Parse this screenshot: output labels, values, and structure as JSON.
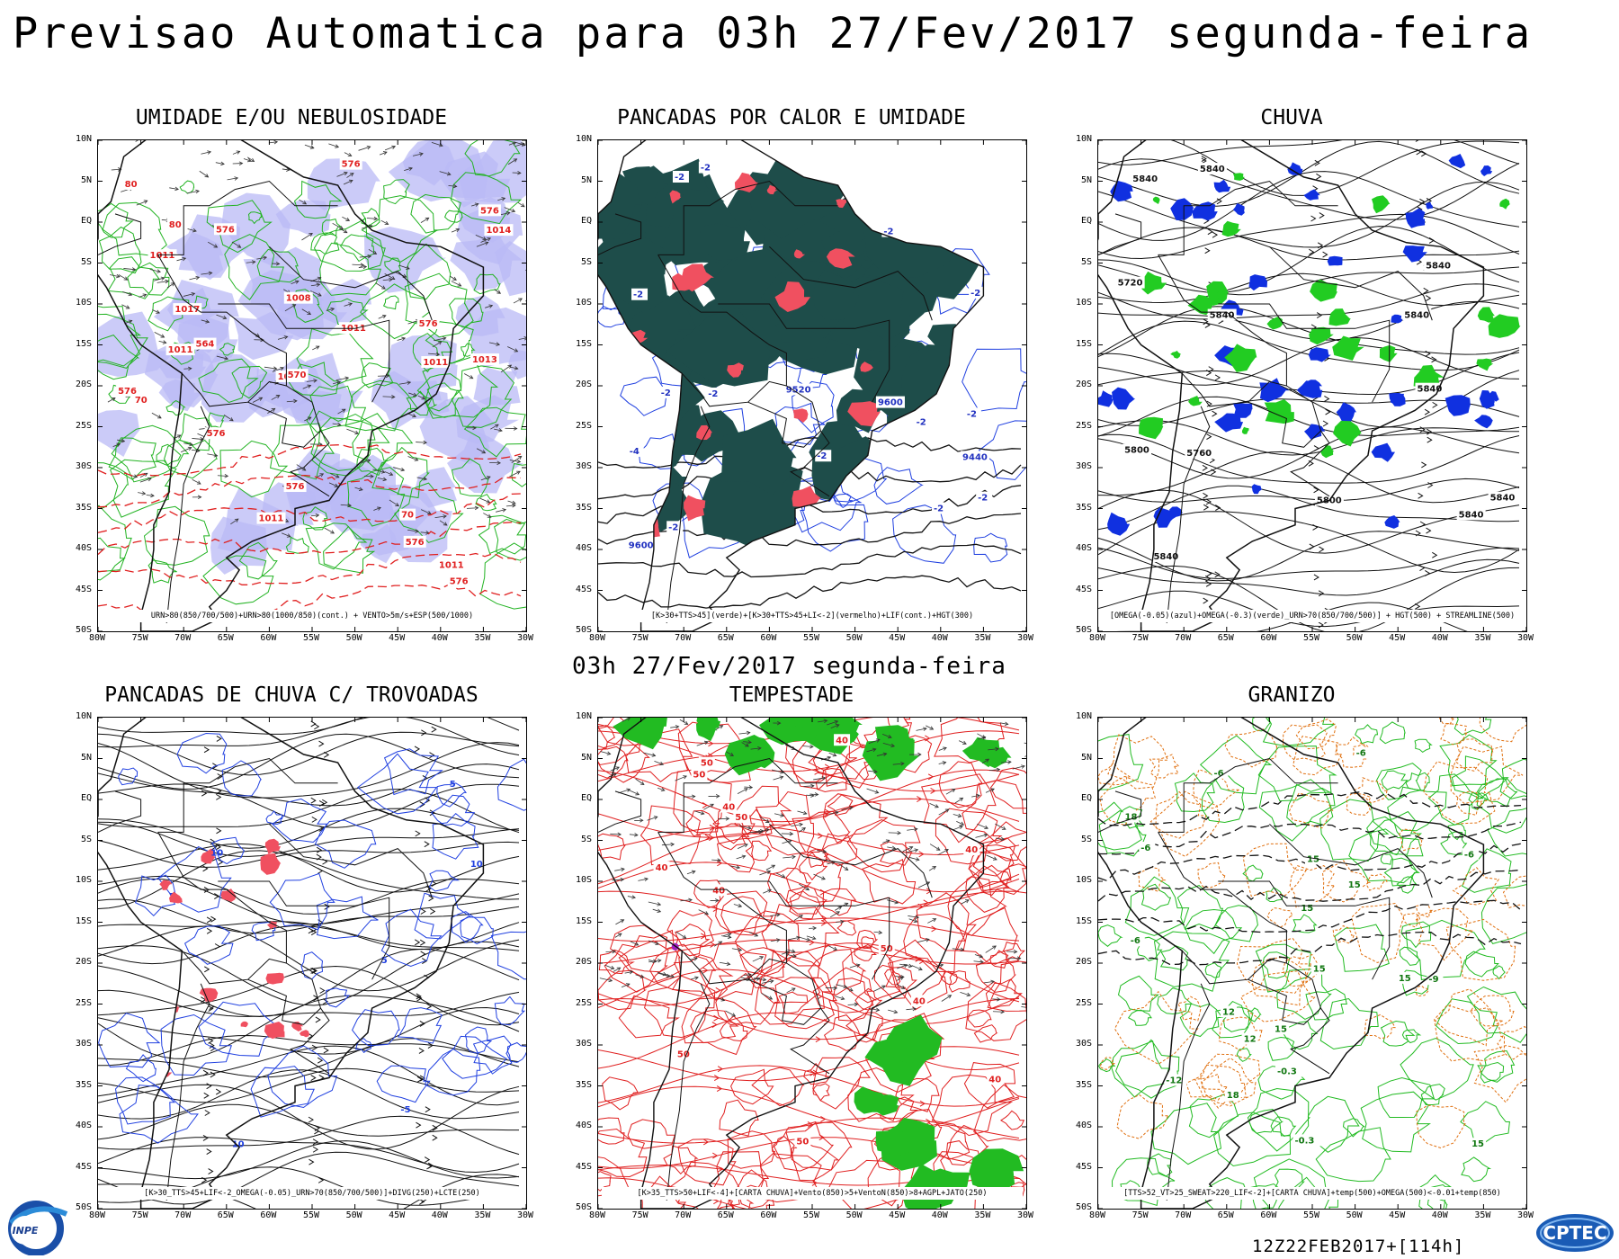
{
  "header": {
    "title": "Previsao Automatica  para 03h 27/Fev/2017 segunda-feira",
    "mid_title": "03h 27/Fev/2017 segunda-feira",
    "timestamp": "12Z22FEB2017+[114h]"
  },
  "axes": {
    "lat_labels": [
      "10N",
      "5N",
      "EQ",
      "5S",
      "10S",
      "15S",
      "20S",
      "25S",
      "30S",
      "35S",
      "40S",
      "45S",
      "50S"
    ],
    "lon_labels": [
      "80W",
      "75W",
      "70W",
      "65W",
      "60W",
      "55W",
      "50W",
      "45W",
      "40W",
      "35W",
      "30W"
    ]
  },
  "panels": [
    {
      "title": "UMIDADE E/OU NEBULOSIDADE",
      "legend": "URN>80(850/700/500)+URN>80(1000/850)(cont.) + VENTO>5m/s+ESP(500/1000)",
      "labels": [
        "576",
        "1011",
        "1011",
        "576",
        "1011",
        "576",
        "576",
        "1011",
        "576",
        "1011",
        "576",
        "1008",
        "576",
        "576",
        "1011",
        "1017",
        "1011",
        "1013",
        "570",
        "576",
        "564",
        "1014",
        "80",
        "70",
        "70",
        "80"
      ],
      "colors": {
        "shade": "#b9b9f5",
        "contour": "#22b322",
        "label": "#e02020"
      }
    },
    {
      "title": "PANCADAS POR CALOR E UMIDADE",
      "legend": "[K>30+TTS>45](verde)+[K>30+TTS>45+LI<-2](vermelho)+LIF(cont.)+HGT(300)",
      "labels": [
        "-2",
        "-2",
        "-2",
        "-2",
        "-2",
        "-2",
        "-4",
        "-2",
        "-2",
        "-2",
        "-2",
        "-2",
        "-2",
        "-2",
        "9600",
        "9600",
        "9520",
        "9440"
      ],
      "colors": {
        "shade": "#1e4d4a",
        "red": "#f05060",
        "contour": "#2040e0"
      }
    },
    {
      "title": "CHUVA",
      "legend": "[OMEGA(-0.05)(azul)+OMEGA(-0.3)(verde)_URN>70(850/700/500)] + HGT(500) + STREAMLINE(500)",
      "labels": [
        "5840",
        "5840",
        "5840",
        "5840",
        "5840",
        "5840",
        "5840",
        "5840",
        "5840",
        "5800",
        "5800",
        "5760",
        "5720"
      ],
      "colors": {
        "blue": "#1030e0",
        "green": "#22cc22"
      }
    },
    {
      "title": "PANCADAS DE CHUVA C/ TROVOADAS",
      "legend": "[K>30_TTS>45+LIF<-2_OMEGA(-0.05)_URN>70(850/700/500)]+DIVG(250)+LCTE(250)",
      "labels": [
        "10",
        "10",
        "5",
        "10",
        "5",
        "-5"
      ],
      "colors": {
        "blue": "#2040e0",
        "red": "#f05060"
      }
    },
    {
      "title": "TEMPESTADE",
      "legend": "[K>35_TTS>50+LIF<-4]+[CARTA CHUVA]+Vento(850)>5+VentoN(850)>8+AGPL+JATO(250)",
      "labels": [
        "40",
        "50",
        "50",
        "50",
        "40",
        "50",
        "50",
        "40",
        "40",
        "40",
        "50",
        "40",
        "40"
      ],
      "colors": {
        "red": "#e02020",
        "green": "#22bb22",
        "purple": "#a020c0"
      }
    },
    {
      "title": "GRANIZO",
      "legend": "[TTS>52_VT>25_SWEAT>220_LIF<-2]+[CARTA CHUVA]+temp(500)+OMEGA(500)<-0.01+temp(850)",
      "labels": [
        "-6",
        "-6",
        "-6",
        "-6",
        "-6",
        "-9",
        "-12",
        "15",
        "15",
        "15",
        "15",
        "18",
        "15",
        "12",
        "12",
        "15",
        "18",
        "15",
        "-0.3",
        "-0.3"
      ],
      "colors": {
        "green": "#22bb22",
        "orange": "#e07010"
      }
    }
  ],
  "logos": {
    "left": "INPE",
    "right": "CPTEC"
  }
}
